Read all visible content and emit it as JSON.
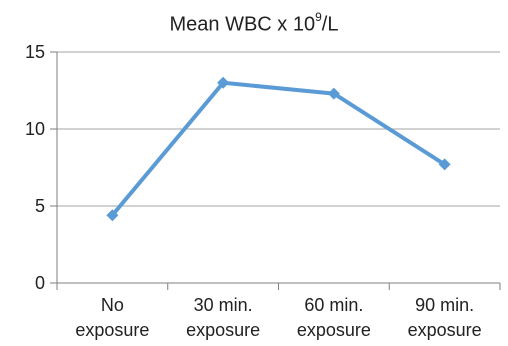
{
  "chart_data": {
    "type": "line",
    "title": {
      "prefix": "Mean WBC x 10",
      "superscript": "9",
      "suffix": "/L"
    },
    "categories": [
      [
        "No",
        "exposure"
      ],
      [
        "30 min.",
        "exposure"
      ],
      [
        "60 min.",
        "exposure"
      ],
      [
        "90 min.",
        "exposure"
      ]
    ],
    "series": [
      {
        "values": [
          4.4,
          13.0,
          12.3,
          7.7
        ]
      }
    ],
    "ylim": [
      0,
      15
    ],
    "yticks": [
      0,
      5,
      10,
      15
    ],
    "grid": true,
    "legend": "none",
    "colors": {
      "series": "#5B9BD5",
      "grid": "#a6a6a6",
      "axis": "#7f7f7f",
      "text": "#222222"
    }
  }
}
